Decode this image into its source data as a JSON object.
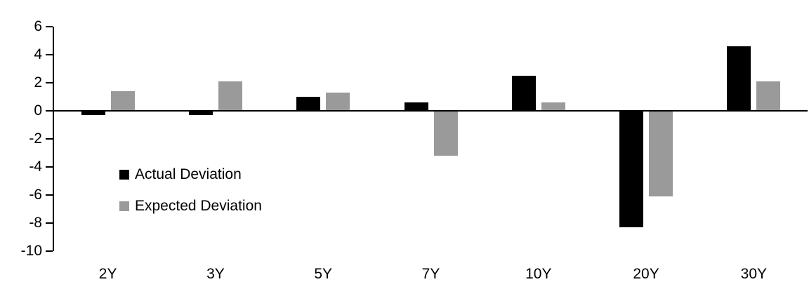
{
  "chart_data": {
    "type": "bar",
    "title": "",
    "xlabel": "",
    "ylabel": "",
    "categories": [
      "2Y",
      "3Y",
      "5Y",
      "7Y",
      "10Y",
      "20Y",
      "30Y"
    ],
    "series": [
      {
        "name": "Actual Deviation",
        "color": "#000000",
        "values": [
          -0.3,
          -0.3,
          1.0,
          0.6,
          2.5,
          -8.3,
          4.6
        ]
      },
      {
        "name": "Expected Deviation",
        "color": "#9a9a9a",
        "values": [
          1.4,
          2.1,
          1.3,
          -3.2,
          0.6,
          -6.1,
          2.1
        ]
      }
    ],
    "ylim": [
      -10,
      6
    ],
    "yticks": [
      6,
      4,
      2,
      0,
      -2,
      -4,
      -6,
      -8,
      -10
    ],
    "grid": false,
    "legend_position": "inside-left",
    "axis_color": "#000000"
  }
}
